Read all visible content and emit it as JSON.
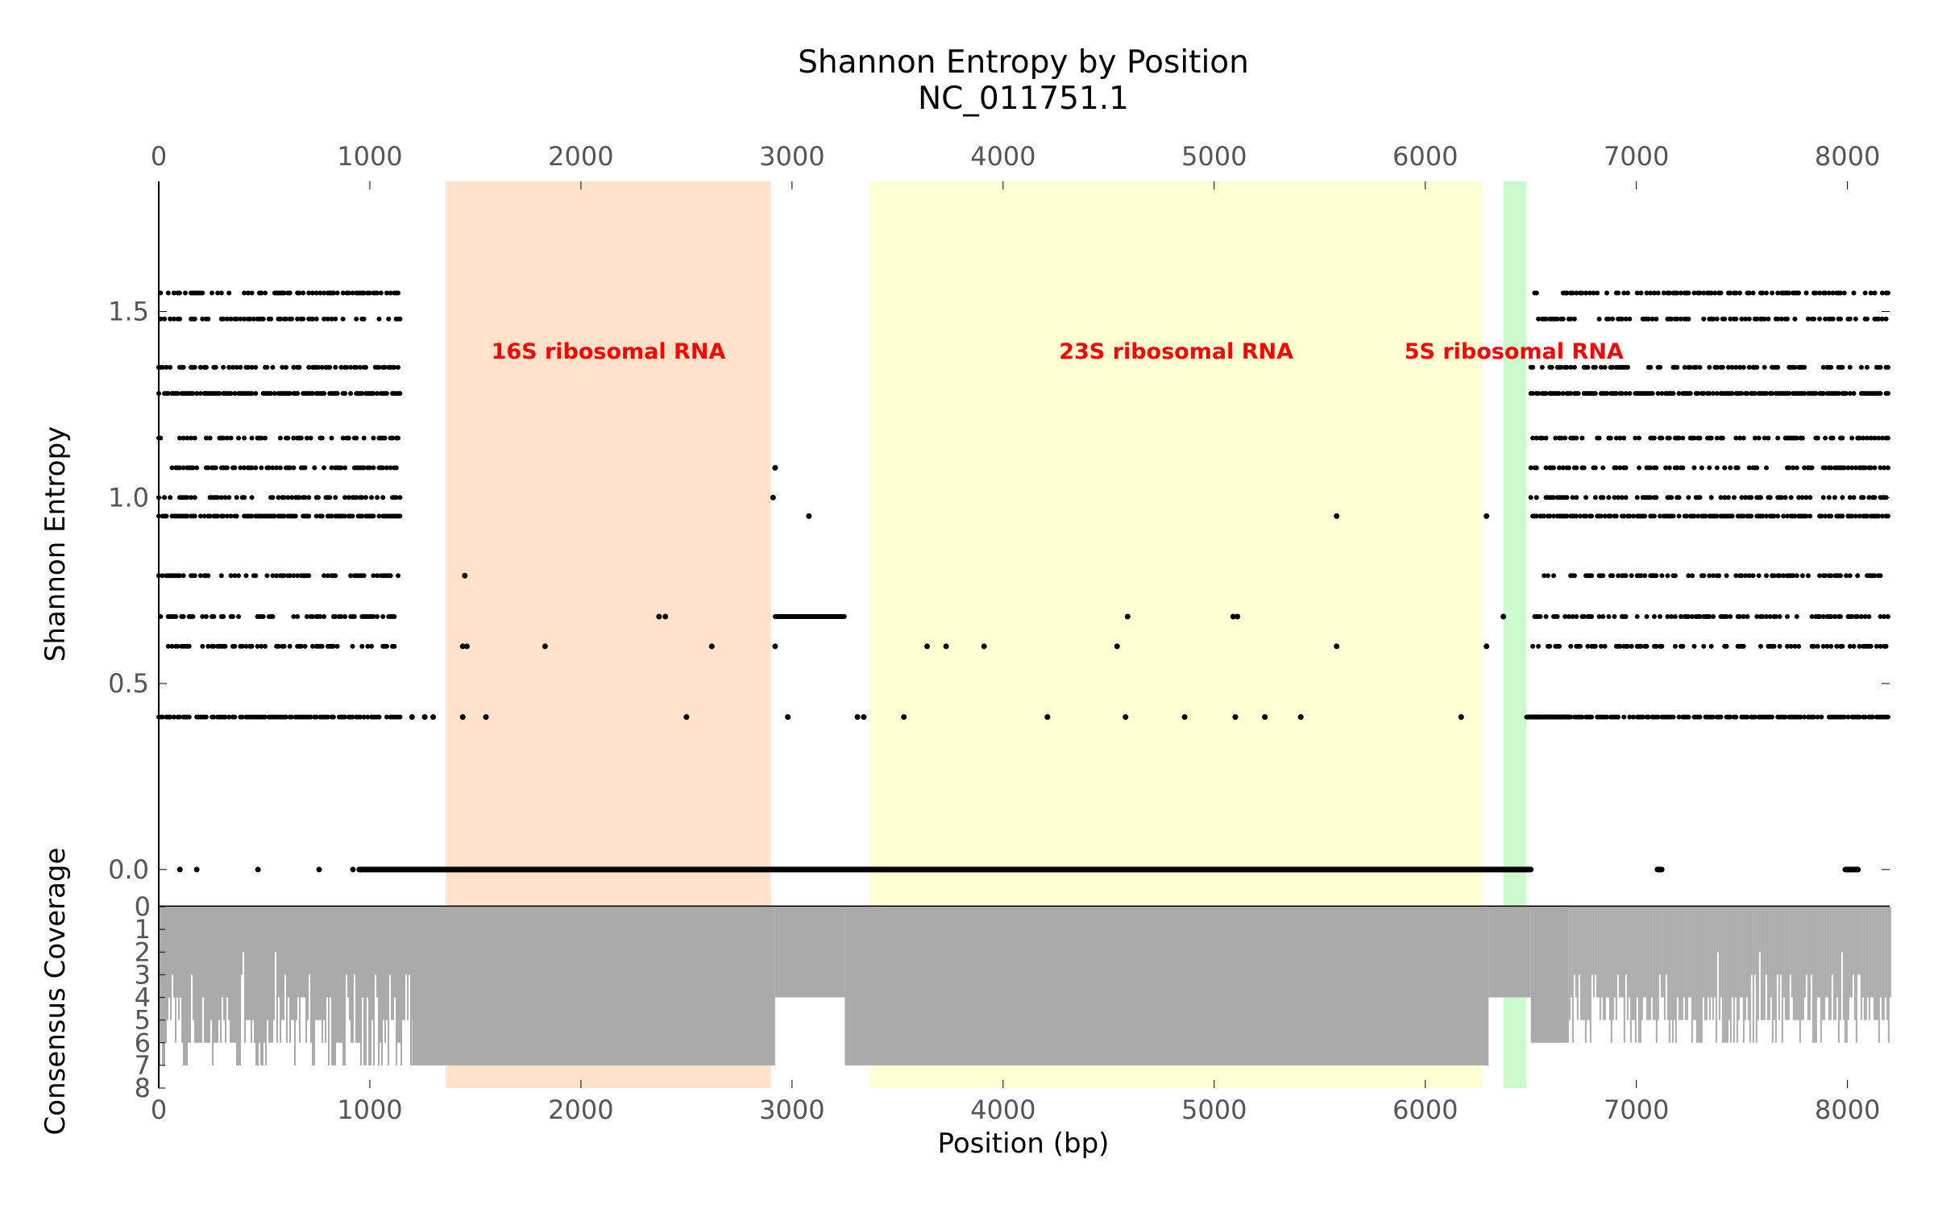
{
  "title_line1": "Shannon Entropy by Position",
  "title_line2": "NC_011751.1",
  "colors": {
    "point": "#000000",
    "coverage": "#aaaaaa",
    "label": "#ff0000",
    "tick_label": "#555555"
  },
  "chart_data": [
    {
      "type": "scatter",
      "ylabel": "Shannon Entropy",
      "xlim": [
        0,
        8200
      ],
      "ylim": [
        -0.1,
        1.85
      ],
      "x_ticks": [
        0,
        1000,
        2000,
        3000,
        4000,
        5000,
        6000,
        7000,
        8000
      ],
      "y_ticks": [
        0.0,
        0.5,
        1.0,
        1.5
      ],
      "y_tick_labels": [
        "0.0",
        "0.5",
        "1.0",
        "1.5"
      ],
      "x_tick_labels": [
        "0",
        "1000",
        "2000",
        "3000",
        "4000",
        "5000",
        "6000",
        "7000",
        "8000"
      ],
      "entropy_levels": [
        0.41,
        0.6,
        0.68,
        0.79,
        0.95,
        1.0,
        1.08,
        1.16,
        1.28,
        1.35,
        1.48,
        1.55
      ],
      "dense_segments": [
        {
          "x_start": 0,
          "x_end": 1150,
          "levels": [
            0.41,
            0.6,
            0.68,
            0.79,
            0.95,
            1.0,
            1.08,
            1.16,
            1.28,
            1.35,
            1.48,
            1.55
          ],
          "step": 9
        },
        {
          "x_start": 6500,
          "x_end": 8200,
          "levels": [
            0.41,
            0.6,
            0.68,
            0.79,
            0.95,
            1.0,
            1.08,
            1.16,
            1.28,
            1.35,
            1.48,
            1.55
          ],
          "step": 9
        },
        {
          "x_start": 2920,
          "x_end": 3250,
          "levels": [
            0.68
          ],
          "step": 4
        },
        {
          "x_start": 6480,
          "x_end": 6680,
          "levels": [
            0.41
          ],
          "step": 4
        }
      ],
      "zero_line_segments": [
        [
          950,
          6500
        ],
        [
          7100,
          7120
        ],
        [
          7990,
          8050
        ]
      ],
      "sparse_points": [
        {
          "x": 1450,
          "y": 0.79
        },
        {
          "x": 1440,
          "y": 0.6
        },
        {
          "x": 1460,
          "y": 0.6
        },
        {
          "x": 1440,
          "y": 0.41
        },
        {
          "x": 1550,
          "y": 0.41
        },
        {
          "x": 1830,
          "y": 0.6
        },
        {
          "x": 2370,
          "y": 0.68
        },
        {
          "x": 2400,
          "y": 0.68
        },
        {
          "x": 2500,
          "y": 0.41
        },
        {
          "x": 2620,
          "y": 0.6
        },
        {
          "x": 2920,
          "y": 1.08
        },
        {
          "x": 2910,
          "y": 1.0
        },
        {
          "x": 2920,
          "y": 0.6
        },
        {
          "x": 2980,
          "y": 0.41
        },
        {
          "x": 3080,
          "y": 0.95
        },
        {
          "x": 3310,
          "y": 0.41
        },
        {
          "x": 3340,
          "y": 0.41
        },
        {
          "x": 3530,
          "y": 0.41
        },
        {
          "x": 3640,
          "y": 0.6
        },
        {
          "x": 3730,
          "y": 0.6
        },
        {
          "x": 3910,
          "y": 0.6
        },
        {
          "x": 4210,
          "y": 0.41
        },
        {
          "x": 4540,
          "y": 0.6
        },
        {
          "x": 4590,
          "y": 0.68
        },
        {
          "x": 4580,
          "y": 0.41
        },
        {
          "x": 4860,
          "y": 0.41
        },
        {
          "x": 5090,
          "y": 0.68
        },
        {
          "x": 5110,
          "y": 0.68
        },
        {
          "x": 5100,
          "y": 0.41
        },
        {
          "x": 5240,
          "y": 0.41
        },
        {
          "x": 5410,
          "y": 0.41
        },
        {
          "x": 5580,
          "y": 0.95
        },
        {
          "x": 5580,
          "y": 0.6
        },
        {
          "x": 6170,
          "y": 0.41
        },
        {
          "x": 6290,
          "y": 0.95
        },
        {
          "x": 6290,
          "y": 0.6
        },
        {
          "x": 6370,
          "y": 0.68
        },
        {
          "x": 1200,
          "y": 0.41
        },
        {
          "x": 1260,
          "y": 0.41
        },
        {
          "x": 1300,
          "y": 0.41
        },
        {
          "x": 100,
          "y": 0.0
        },
        {
          "x": 180,
          "y": 0.0
        },
        {
          "x": 470,
          "y": 0.0
        },
        {
          "x": 760,
          "y": 0.0
        },
        {
          "x": 920,
          "y": 0.0
        }
      ],
      "regions": [
        {
          "name": "16S ribosomal RNA",
          "x_start": 1360,
          "x_end": 2900,
          "color": "#ffddc0",
          "label_x": 2130
        },
        {
          "name": "23S ribosomal RNA",
          "x_start": 3370,
          "x_end": 6270,
          "color": "#ffffcc",
          "label_x": 4820
        },
        {
          "name": "5S ribosomal RNA",
          "x_start": 6370,
          "x_end": 6480,
          "color": "#c3f9c3",
          "label_x": 6420
        }
      ]
    },
    {
      "type": "area",
      "ylabel": "Consensus Coverage",
      "xlabel": "Position (bp)",
      "xlim": [
        0,
        8200
      ],
      "ylim": [
        8,
        0
      ],
      "y_ticks": [
        0,
        1,
        2,
        3,
        4,
        5,
        6,
        7,
        8
      ],
      "y_tick_labels": [
        "0",
        "1",
        "2",
        "3",
        "4",
        "5",
        "6",
        "7",
        "8"
      ],
      "x_ticks": [
        0,
        1000,
        2000,
        3000,
        4000,
        5000,
        6000,
        7000,
        8000
      ],
      "x_tick_labels": [
        "0",
        "1000",
        "2000",
        "3000",
        "4000",
        "5000",
        "6000",
        "7000",
        "8000"
      ],
      "coverage_segments": [
        {
          "x_start": 0,
          "x_end": 1200,
          "min_depth": 2,
          "max_depth": 7
        },
        {
          "x_start": 1200,
          "x_end": 2920,
          "min_depth": 7,
          "max_depth": 7
        },
        {
          "x_start": 2920,
          "x_end": 3250,
          "min_depth": 4,
          "max_depth": 4
        },
        {
          "x_start": 3250,
          "x_end": 6300,
          "min_depth": 7,
          "max_depth": 7
        },
        {
          "x_start": 6300,
          "x_end": 6500,
          "min_depth": 4,
          "max_depth": 4
        },
        {
          "x_start": 6500,
          "x_end": 6680,
          "min_depth": 6,
          "max_depth": 6
        },
        {
          "x_start": 6680,
          "x_end": 8200,
          "min_depth": 2,
          "max_depth": 6
        }
      ]
    }
  ]
}
